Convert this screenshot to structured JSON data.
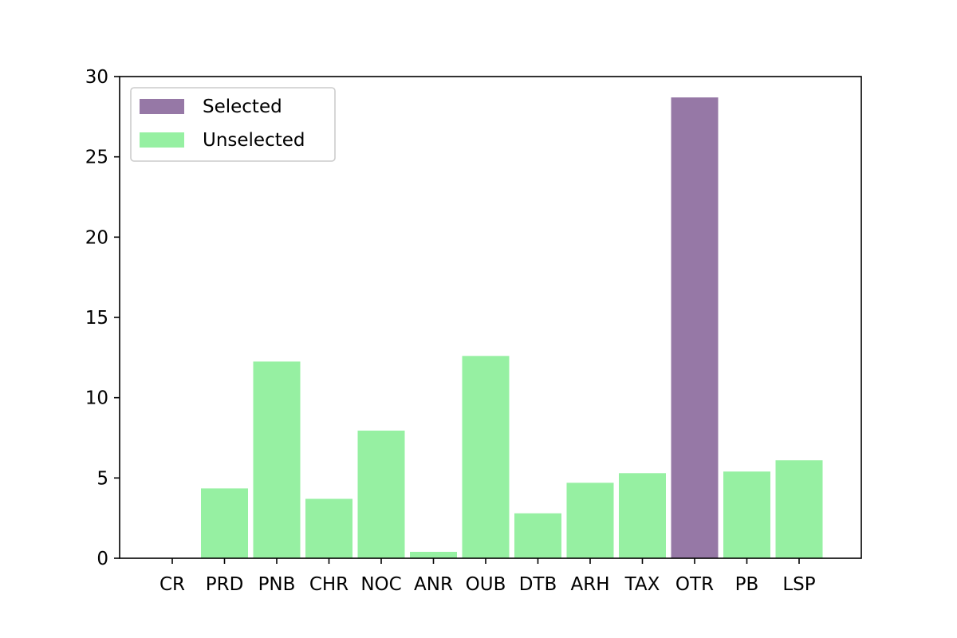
{
  "chart_data": {
    "type": "bar",
    "categories": [
      "CR",
      "PRD",
      "PNB",
      "CHR",
      "NOC",
      "ANR",
      "OUB",
      "DTB",
      "ARH",
      "TAX",
      "OTR",
      "PB",
      "LSP"
    ],
    "values": [
      0,
      4.35,
      12.25,
      3.7,
      7.95,
      0.4,
      12.6,
      2.8,
      4.7,
      5.3,
      28.7,
      5.4,
      6.1
    ],
    "selected": [
      false,
      false,
      false,
      false,
      false,
      false,
      false,
      false,
      false,
      false,
      true,
      false,
      false
    ],
    "ylim": [
      0,
      30
    ],
    "yticks": [
      0,
      5,
      10,
      15,
      20,
      25,
      30
    ],
    "grid": false,
    "legend_position": "top-left",
    "legend": [
      {
        "label": "Selected",
        "color": "#9678a6"
      },
      {
        "label": "Unselected",
        "color": "#96f0a2"
      }
    ],
    "colors": {
      "selected": "#9678a6",
      "unselected": "#96f0a2"
    }
  }
}
